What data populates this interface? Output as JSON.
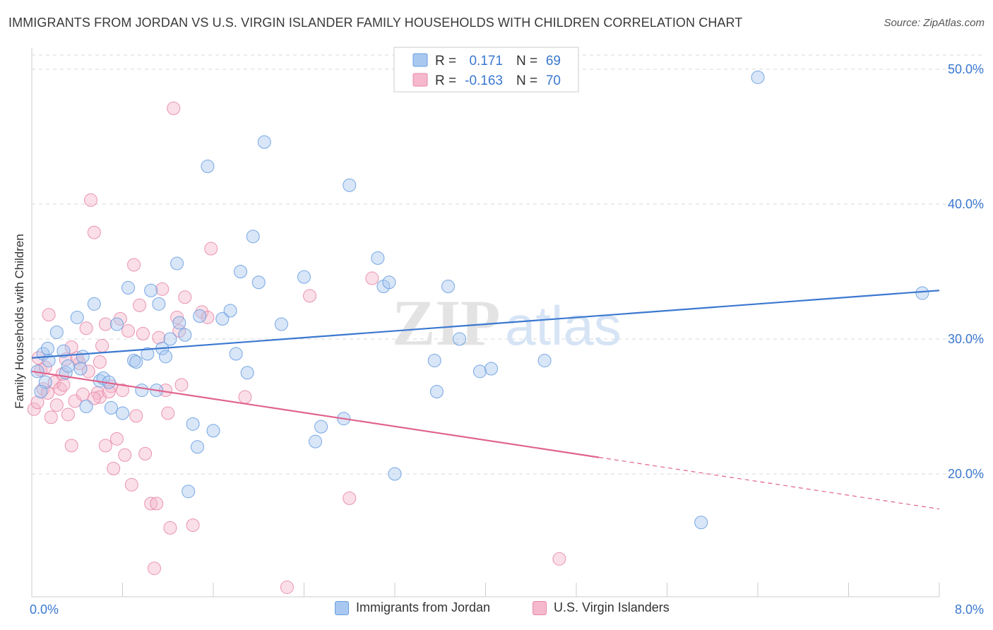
{
  "header": {
    "title": "IMMIGRANTS FROM JORDAN VS U.S. VIRGIN ISLANDER FAMILY HOUSEHOLDS WITH CHILDREN CORRELATION CHART",
    "source": "Source: ZipAtlas.com"
  },
  "watermark": {
    "zip": "ZIP",
    "atlas": "atlas"
  },
  "colors": {
    "blue_fill": "#a8c8f0",
    "blue_stroke": "#6a9ee0",
    "blue_line": "#3b78d0",
    "pink_fill": "#f5b8cc",
    "pink_stroke": "#e88aa8",
    "pink_line": "#e0638c",
    "axis_text": "#3b78d0",
    "grid": "#d8d8d8"
  },
  "legend_top": {
    "rows": [
      {
        "r_label": "R =",
        "r_value": "0.171",
        "n_label": "N =",
        "n_value": "69",
        "series": "blue"
      },
      {
        "r_label": "R =",
        "r_value": "-0.163",
        "n_label": "N =",
        "n_value": "70",
        "series": "pink"
      }
    ]
  },
  "legend_bottom": {
    "items": [
      {
        "label": "Immigrants from Jordan",
        "series": "blue"
      },
      {
        "label": "U.S. Virgin Islanders",
        "series": "pink"
      }
    ]
  },
  "chart_data": {
    "type": "scatter",
    "title": "IMMIGRANTS FROM JORDAN VS U.S. VIRGIN ISLANDER FAMILY HOUSEHOLDS WITH CHILDREN CORRELATION CHART",
    "xlabel": "",
    "ylabel": "Family Households with Children",
    "xlim": [
      0,
      8
    ],
    "ylim": [
      10,
      52
    ],
    "x_tick_labels": [
      {
        "value": 0,
        "label": "0.0%"
      },
      {
        "value": 8,
        "label": "8.0%"
      }
    ],
    "y_tick_labels": [
      {
        "value": 20,
        "label": "20.0%"
      },
      {
        "value": 30,
        "label": "30.0%"
      },
      {
        "value": 40,
        "label": "40.0%"
      },
      {
        "value": 50,
        "label": "50.0%"
      }
    ],
    "x_minor_ticks": [
      0.8,
      1.6,
      2.4,
      3.2,
      4.0,
      4.8,
      5.6,
      6.4,
      7.2,
      8.0
    ],
    "series": [
      {
        "name": "Immigrants from Jordan",
        "color": "blue",
        "R": 0.171,
        "N": 69,
        "trend": {
          "x0": 0.0,
          "y0": 28.6,
          "x1": 8.0,
          "y1": 33.6,
          "solid_until": 8.0
        },
        "points": [
          [
            0.05,
            27.6
          ],
          [
            0.1,
            28.9
          ],
          [
            0.12,
            26.8
          ],
          [
            0.15,
            28.4
          ],
          [
            0.14,
            29.3
          ],
          [
            0.22,
            30.5
          ],
          [
            0.28,
            29.1
          ],
          [
            0.3,
            27.5
          ],
          [
            0.32,
            28.0
          ],
          [
            0.4,
            31.6
          ],
          [
            0.43,
            27.8
          ],
          [
            0.45,
            28.7
          ],
          [
            0.48,
            25.0
          ],
          [
            0.55,
            32.6
          ],
          [
            0.6,
            26.9
          ],
          [
            0.63,
            27.1
          ],
          [
            0.68,
            26.8
          ],
          [
            0.7,
            24.9
          ],
          [
            0.75,
            31.1
          ],
          [
            0.8,
            24.5
          ],
          [
            0.85,
            33.8
          ],
          [
            0.9,
            28.4
          ],
          [
            0.92,
            28.3
          ],
          [
            0.97,
            26.2
          ],
          [
            1.02,
            28.9
          ],
          [
            1.05,
            33.6
          ],
          [
            1.1,
            26.2
          ],
          [
            1.12,
            32.6
          ],
          [
            1.15,
            29.3
          ],
          [
            1.18,
            28.7
          ],
          [
            1.22,
            30.0
          ],
          [
            1.28,
            35.6
          ],
          [
            1.3,
            31.2
          ],
          [
            1.35,
            30.3
          ],
          [
            1.38,
            18.7
          ],
          [
            1.42,
            23.7
          ],
          [
            1.46,
            22.0
          ],
          [
            1.48,
            31.7
          ],
          [
            1.55,
            42.8
          ],
          [
            1.6,
            23.2
          ],
          [
            1.68,
            31.5
          ],
          [
            1.75,
            32.1
          ],
          [
            1.8,
            28.9
          ],
          [
            1.84,
            35.0
          ],
          [
            1.9,
            27.5
          ],
          [
            1.95,
            37.6
          ],
          [
            2.0,
            34.2
          ],
          [
            2.05,
            44.6
          ],
          [
            2.2,
            31.1
          ],
          [
            2.4,
            34.6
          ],
          [
            2.5,
            22.4
          ],
          [
            2.55,
            23.5
          ],
          [
            2.75,
            24.1
          ],
          [
            2.8,
            41.4
          ],
          [
            3.05,
            36.0
          ],
          [
            3.1,
            33.9
          ],
          [
            3.15,
            34.2
          ],
          [
            3.2,
            20.0
          ],
          [
            3.55,
            28.4
          ],
          [
            3.57,
            26.1
          ],
          [
            3.67,
            33.9
          ],
          [
            3.77,
            30.0
          ],
          [
            3.95,
            27.6
          ],
          [
            4.05,
            27.8
          ],
          [
            4.52,
            28.4
          ],
          [
            5.9,
            16.4
          ],
          [
            6.4,
            49.4
          ],
          [
            7.85,
            33.4
          ],
          [
            0.08,
            26.1
          ]
        ]
      },
      {
        "name": "U.S. Virgin Islanders",
        "color": "pink",
        "R": -0.163,
        "N": 70,
        "trend": {
          "x0": 0.0,
          "y0": 27.6,
          "x1": 8.0,
          "y1": 17.4,
          "solid_until": 5.0
        },
        "points": [
          [
            0.02,
            24.8
          ],
          [
            0.05,
            25.3
          ],
          [
            0.08,
            27.7
          ],
          [
            0.1,
            26.3
          ],
          [
            0.12,
            27.9
          ],
          [
            0.15,
            31.8
          ],
          [
            0.17,
            24.2
          ],
          [
            0.2,
            26.8
          ],
          [
            0.22,
            25.1
          ],
          [
            0.25,
            26.3
          ],
          [
            0.27,
            27.4
          ],
          [
            0.3,
            28.5
          ],
          [
            0.32,
            24.4
          ],
          [
            0.35,
            29.4
          ],
          [
            0.38,
            25.4
          ],
          [
            0.35,
            22.1
          ],
          [
            0.42,
            28.2
          ],
          [
            0.45,
            25.9
          ],
          [
            0.48,
            30.8
          ],
          [
            0.52,
            40.3
          ],
          [
            0.55,
            37.9
          ],
          [
            0.58,
            26.0
          ],
          [
            0.6,
            25.7
          ],
          [
            0.62,
            29.5
          ],
          [
            0.65,
            31.1
          ],
          [
            0.65,
            22.1
          ],
          [
            0.7,
            26.5
          ],
          [
            0.72,
            20.4
          ],
          [
            0.75,
            22.6
          ],
          [
            0.78,
            31.5
          ],
          [
            0.8,
            26.2
          ],
          [
            0.82,
            21.4
          ],
          [
            0.85,
            30.6
          ],
          [
            0.88,
            19.2
          ],
          [
            0.9,
            35.5
          ],
          [
            0.92,
            24.3
          ],
          [
            0.95,
            32.5
          ],
          [
            0.98,
            30.4
          ],
          [
            1.0,
            21.5
          ],
          [
            1.05,
            17.8
          ],
          [
            1.08,
            13.0
          ],
          [
            1.1,
            17.8
          ],
          [
            1.12,
            30.1
          ],
          [
            1.15,
            33.7
          ],
          [
            1.18,
            26.2
          ],
          [
            1.2,
            24.5
          ],
          [
            1.22,
            16.0
          ],
          [
            1.25,
            47.1
          ],
          [
            1.28,
            31.6
          ],
          [
            1.3,
            30.6
          ],
          [
            1.32,
            26.6
          ],
          [
            1.35,
            33.1
          ],
          [
            1.42,
            16.2
          ],
          [
            1.5,
            32.0
          ],
          [
            1.55,
            31.6
          ],
          [
            1.58,
            36.7
          ],
          [
            1.88,
            25.7
          ],
          [
            2.25,
            11.6
          ],
          [
            2.45,
            33.2
          ],
          [
            2.8,
            18.2
          ],
          [
            3.0,
            34.5
          ],
          [
            4.65,
            13.7
          ],
          [
            0.06,
            28.6
          ],
          [
            0.14,
            26.0
          ],
          [
            0.28,
            26.6
          ],
          [
            0.4,
            28.6
          ],
          [
            0.55,
            25.6
          ],
          [
            0.6,
            28.3
          ],
          [
            0.68,
            26.1
          ],
          [
            0.5,
            27.6
          ]
        ]
      }
    ]
  }
}
